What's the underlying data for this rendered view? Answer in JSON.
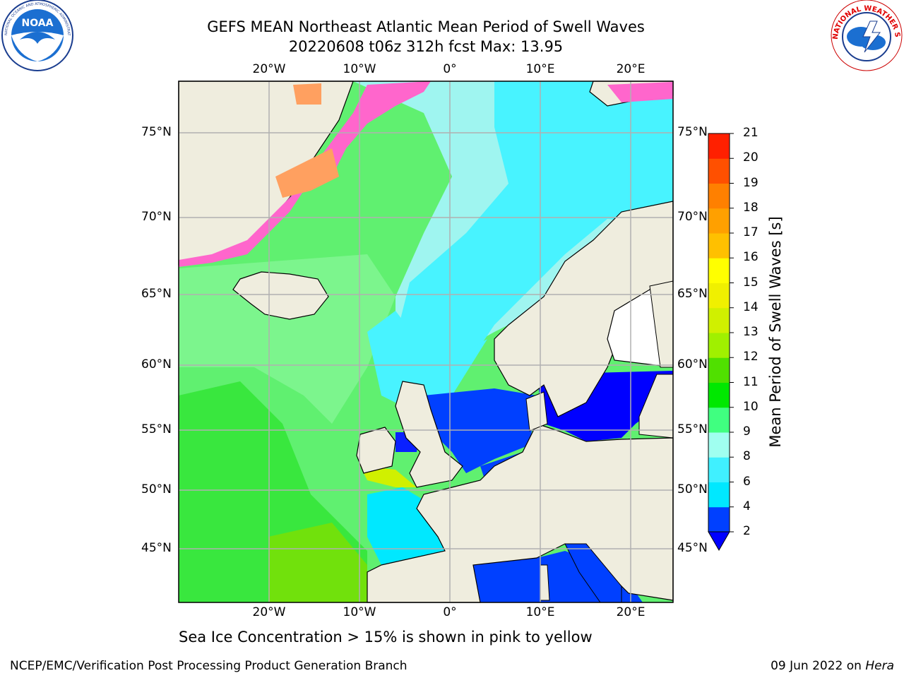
{
  "header": {
    "title_line1": "GEFS MEAN Northeast Atlantic Mean Period of Swell Waves",
    "title_line2": "20220608 t06z 312h fcst   Max: 13.95"
  },
  "logos": {
    "left": {
      "name": "NOAA",
      "ring_text": "NATIONAL OCEANIC AND ATMOSPHERIC ADMINISTRATION · U.S. DEPARTMENT OF COMMERCE",
      "center_text": "NOAA"
    },
    "right": {
      "name": "National Weather Service",
      "ring_text": "NATIONAL WEATHER SERVICE"
    }
  },
  "map": {
    "lon_labels_top": [
      "20°W",
      "10°W",
      "0°",
      "10°E",
      "20°E"
    ],
    "lon_labels_bottom": [
      "20°W",
      "10°W",
      "0°",
      "10°E",
      "20°E"
    ],
    "lat_labels_left": [
      "75°N",
      "70°N",
      "65°N",
      "60°N",
      "55°N",
      "50°N",
      "45°N"
    ],
    "lat_labels_right": [
      "75°N",
      "70°N",
      "65°N",
      "60°N",
      "55°N",
      "50°N",
      "45°N"
    ],
    "colors": {
      "land": "#efedde",
      "ice": "#ff66cc",
      "grid": "#b0b0b0"
    }
  },
  "colorbar": {
    "label": "Mean Period of Swell Waves [s]",
    "ticks": [
      "2",
      "4",
      "6",
      "8",
      "9",
      "10",
      "11",
      "12",
      "13",
      "14",
      "15",
      "16",
      "17",
      "18",
      "19",
      "20",
      "21"
    ],
    "colors": [
      "#0040ff",
      "#00e8ff",
      "#40f0ff",
      "#a0fff0",
      "#40ff80",
      "#00e800",
      "#50e000",
      "#a0f000",
      "#d0f000",
      "#f0f000",
      "#ffff00",
      "#ffc000",
      "#ffa000",
      "#ff8000",
      "#ff5000",
      "#ff2000",
      "#ff0000"
    ],
    "extend_color": "#0000ff"
  },
  "footer": {
    "note": "Sea Ice Concentration > 15% is shown in pink to yellow",
    "left": "NCEP/EMC/Verification Post Processing Product Generation Branch",
    "right_date": "09 Jun 2022 on ",
    "right_host": "Hera"
  }
}
